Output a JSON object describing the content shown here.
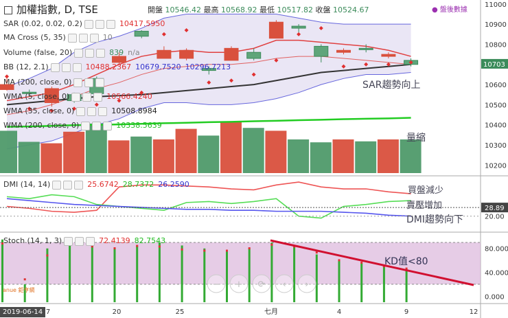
{
  "header": {
    "menu_icon": "menu-icon",
    "symbol": "加權指數",
    "interval": "D",
    "exchange": "TSE",
    "ohlc": [
      {
        "label": "開盤",
        "value": "10546.42"
      },
      {
        "label": "最高",
        "value": "10568.92"
      },
      {
        "label": "最低",
        "value": "10517.82"
      },
      {
        "label": "收盤",
        "value": "10524.67"
      }
    ],
    "after_hours": "盤後數據"
  },
  "indicators": [
    {
      "name": "SAR (0.02, 0.02, 0.2)",
      "values": [
        "10417.5950"
      ],
      "colors": [
        "#e03030"
      ]
    },
    {
      "name": "MA Cross (5, 35)",
      "values": [
        "10"
      ],
      "colors": [
        "#888888"
      ]
    },
    {
      "name": "Volume (false, 20)",
      "values": [
        "839",
        "n/a"
      ],
      "colors": [
        "#3b8b5a",
        "#888888"
      ]
    },
    {
      "name": "BB (12, 2.1)",
      "values": [
        "10488.2367",
        "10679.7520",
        "10296.7213"
      ],
      "colors": [
        "#e03030",
        "#3333cc",
        "#3333cc"
      ]
    },
    {
      "name": "MA (200, close, 0)",
      "values": [],
      "colors": []
    },
    {
      "name": "WMA (5, close, 0)",
      "values": [
        "10566.4240"
      ],
      "colors": [
        "#e03030"
      ]
    },
    {
      "name": "WMA (35, close, 0)",
      "values": [
        "10508.8984"
      ],
      "colors": [
        "#222222"
      ]
    },
    {
      "name": "WMA (200, close, 0)",
      "values": [
        "10338.5639"
      ],
      "colors": [
        "#22bb22"
      ]
    }
  ],
  "dmi_legend": {
    "name": "DMI (14, 14)",
    "values": [
      "25.6742",
      "28.7372",
      "26.2590"
    ],
    "colors": [
      "#e03030",
      "#22bb22",
      "#3333cc"
    ]
  },
  "stoch_legend": {
    "name": "Stoch (14, 1, 3)",
    "values": [
      "72.4139",
      "82.7543"
    ],
    "colors": [
      "#e03030",
      "#22bb22"
    ]
  },
  "annotations": {
    "sar": "SAR趨勢向上",
    "volume": "量縮",
    "dmi_buy": "買盤減少",
    "dmi_sell": "賣壓增加",
    "dmi_trend": "DMI趨勢向下",
    "kd": "KD值<80"
  },
  "price_axis": {
    "ticks": [
      "11000",
      "10900",
      "10800",
      "10600",
      "10500",
      "10400",
      "10300",
      "10200"
    ],
    "current_label": "10703",
    "current_color": "#3b8b5a"
  },
  "dmi_axis": {
    "ticks": [
      "20.00"
    ],
    "current_label": "28.89",
    "current_color": "#444444"
  },
  "stoch_axis": {
    "ticks": [
      "80.000",
      "40.000",
      "0.000"
    ]
  },
  "time_axis": {
    "date_box": "2019-06-14",
    "ticks": [
      "7",
      "20",
      "25",
      "七月",
      "4",
      "9",
      "12"
    ]
  },
  "logo_text": "anue 鉅亨網",
  "nav_icons": [
    "zoom-out-icon",
    "zoom-in-icon",
    "reset-icon",
    "scroll-left-icon",
    "scroll-right-icon"
  ],
  "chart_data": {
    "type": "candlestick",
    "title": "加權指數, D, TSE",
    "price_range": [
      10150,
      11020
    ],
    "candles": [
      {
        "o": 10600,
        "h": 10630,
        "l": 10570,
        "c": 10575,
        "up": false
      },
      {
        "o": 10555,
        "h": 10575,
        "l": 10540,
        "c": 10562,
        "up": true
      },
      {
        "o": 10580,
        "h": 10590,
        "l": 10490,
        "c": 10510,
        "up": false
      },
      {
        "o": 10520,
        "h": 10560,
        "l": 10510,
        "c": 10550,
        "up": true
      },
      {
        "o": 10555,
        "h": 10640,
        "l": 10550,
        "c": 10630,
        "up": true
      },
      {
        "o": 10740,
        "h": 10760,
        "l": 10700,
        "c": 10710,
        "up": false
      },
      {
        "o": 10840,
        "h": 10870,
        "l": 10830,
        "c": 10865,
        "up": true
      },
      {
        "o": 10770,
        "h": 10790,
        "l": 10730,
        "c": 10730,
        "up": false
      },
      {
        "o": 10770,
        "h": 10780,
        "l": 10720,
        "c": 10730,
        "up": false
      },
      {
        "o": 10670,
        "h": 10690,
        "l": 10650,
        "c": 10680,
        "up": true
      },
      {
        "o": 10780,
        "h": 10790,
        "l": 10720,
        "c": 10720,
        "up": false
      },
      {
        "o": 10760,
        "h": 10780,
        "l": 10720,
        "c": 10730,
        "up": true
      },
      {
        "o": 10830,
        "h": 10920,
        "l": 10830,
        "c": 10910,
        "up": false
      },
      {
        "o": 10890,
        "h": 10900,
        "l": 10860,
        "c": 10880,
        "up": true
      },
      {
        "o": 10740,
        "h": 10800,
        "l": 10710,
        "c": 10790,
        "up": true
      },
      {
        "o": 10770,
        "h": 10780,
        "l": 10750,
        "c": 10760,
        "up": false
      },
      {
        "o": 10780,
        "h": 10800,
        "l": 10760,
        "c": 10780,
        "up": true
      },
      {
        "o": 10750,
        "h": 10760,
        "l": 10730,
        "c": 10740,
        "up": false
      },
      {
        "o": 10700,
        "h": 10730,
        "l": 10690,
        "c": 10720,
        "up": true
      }
    ],
    "bb_upper": [
      10590,
      10630,
      10680,
      10760,
      10810,
      10840,
      10880,
      10930,
      10950,
      10950,
      10950,
      10950,
      10950,
      10930,
      10910,
      10900,
      10900,
      10900,
      10900
    ],
    "bb_lower": [
      10280,
      10300,
      10320,
      10360,
      10400,
      10430,
      10480,
      10510,
      10510,
      10500,
      10500,
      10510,
      10530,
      10560,
      10600,
      10630,
      10650,
      10650,
      10660
    ],
    "bb_mid": [
      10450,
      10470,
      10500,
      10540,
      10580,
      10610,
      10650,
      10680,
      10690,
      10700,
      10700,
      10710,
      10730,
      10740,
      10740,
      10730,
      10720,
      10710,
      10700
    ],
    "wma5": [
      10520,
      10540,
      10560,
      10600,
      10650,
      10700,
      10740,
      10760,
      10770,
      10760,
      10760,
      10780,
      10820,
      10820,
      10810,
      10800,
      10790,
      10770,
      10740
    ],
    "wma35": [
      10500,
      10510,
      10520,
      10530,
      10540,
      10545,
      10550,
      10560,
      10570,
      10580,
      10590,
      10600,
      10620,
      10640,
      10660,
      10670,
      10680,
      10690,
      10700
    ],
    "wma200": [
      10390,
      10392,
      10395,
      10398,
      10400,
      10402,
      10405,
      10408,
      10410,
      10413,
      10415,
      10418,
      10420,
      10423,
      10425,
      10428,
      10430,
      10432,
      10435
    ],
    "sar": [
      10640,
      10480,
      10470,
      10480,
      10500,
      10520,
      10560,
      10850,
      10870,
      10610,
      10620,
      10650,
      10720,
      10850,
      10880,
      10690,
      10700,
      10700,
      10710
    ],
    "volume": [
      880,
      650,
      620,
      860,
      1030,
      680,
      760,
      700,
      920,
      780,
      1060,
      940,
      880,
      700,
      640,
      700,
      660,
      700,
      700
    ],
    "volume_up": [
      true,
      true,
      false,
      false,
      true,
      false,
      true,
      false,
      false,
      true,
      false,
      true,
      false,
      true,
      true,
      false,
      true,
      false,
      true
    ],
    "dmi_plus": [
      30,
      28,
      25,
      24,
      26,
      50,
      52,
      52,
      51,
      50,
      48,
      47,
      52,
      55,
      50,
      48,
      48,
      45,
      43
    ],
    "dmi_minus": [
      40,
      38,
      42,
      40,
      32,
      30,
      28,
      26,
      34,
      35,
      33,
      35,
      38,
      20,
      18,
      30,
      32,
      35,
      36
    ],
    "adx": [
      38,
      36,
      34,
      32,
      31,
      30,
      29,
      28,
      27,
      27,
      26,
      26,
      25,
      25,
      25,
      24,
      23,
      21,
      20
    ],
    "dmi_range": [
      5,
      60
    ],
    "stoch_k": [
      95,
      20,
      80,
      95,
      90,
      80,
      85,
      90,
      85,
      80,
      75,
      80,
      90,
      82,
      70,
      60,
      55,
      50,
      45
    ],
    "stoch_d": [
      90,
      30,
      70,
      90,
      85,
      82,
      86,
      85,
      80,
      78,
      78,
      82,
      88,
      85,
      75,
      62,
      58,
      52,
      48
    ],
    "stoch_range": [
      -10,
      105
    ],
    "x_tick_labels": [
      "7",
      "20",
      "25",
      "七月",
      "4",
      "9",
      "12"
    ]
  }
}
